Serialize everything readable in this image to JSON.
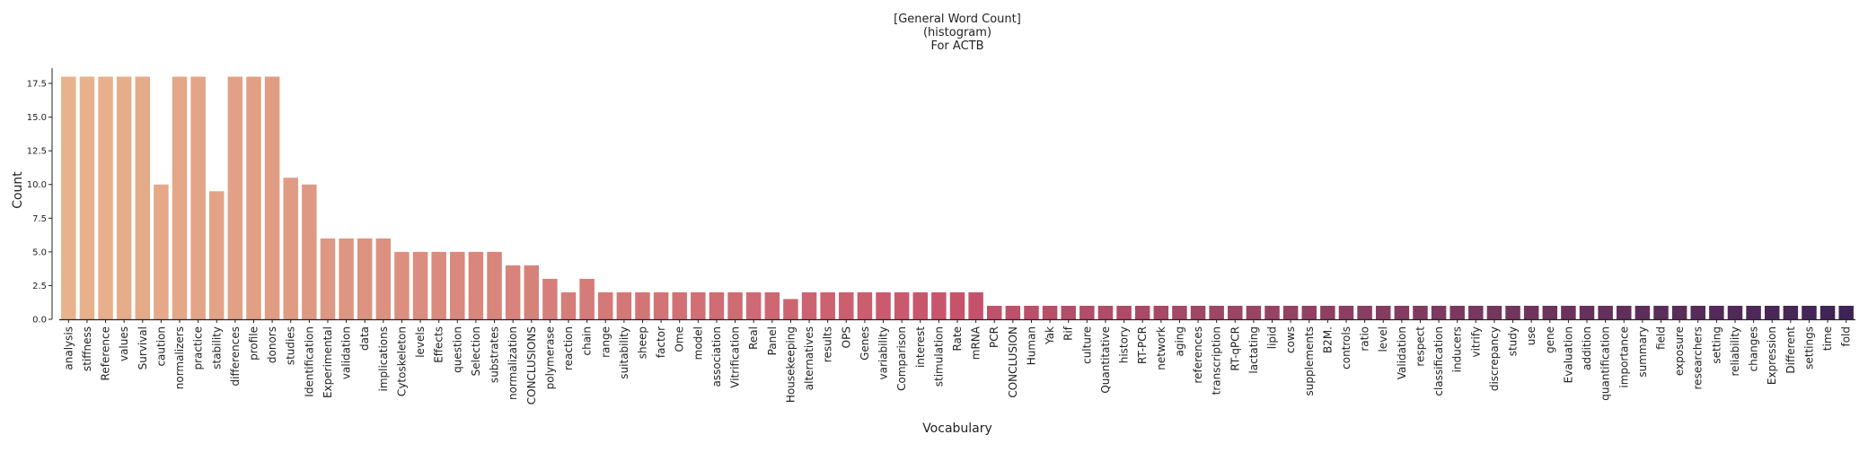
{
  "chart_data": {
    "type": "bar",
    "title_lines": [
      "[General Word Count]",
      "(histogram)",
      "For ACTB"
    ],
    "xlabel": "Vocabulary",
    "ylabel": "Count",
    "ylim": [
      0,
      18.5
    ],
    "yticks": [
      0.0,
      2.5,
      5.0,
      7.5,
      10.0,
      12.5,
      15.0,
      17.5
    ],
    "grid": false,
    "legend": "none",
    "palette": {
      "start": "#e8b38c",
      "mid": "#c7536b",
      "end": "#3f2356"
    },
    "categories": [
      "analysis",
      "stiffness",
      "Reference",
      "values",
      "Survival",
      "caution",
      "normalizers",
      "practice",
      "stability",
      "differences",
      "profile",
      "donors",
      "studies",
      "Identification",
      "Experimental",
      "validation",
      "data",
      "implications",
      "Cytoskeleton",
      "levels",
      "Effects",
      "question",
      "Selection",
      "substrates",
      "normalization",
      "CONCLUSIONS",
      "polymerase",
      "reaction",
      "chain",
      "range",
      "suitability",
      "sheep",
      "factor",
      "Ome",
      "model",
      "association",
      "Vitrification",
      "Real",
      "Panel",
      "Housekeeping",
      "alternatives",
      "results",
      "OPS",
      "Genes",
      "variability",
      "Comparison",
      "interest",
      "stimulation",
      "Rate",
      "mRNA",
      "PCR",
      "CONCLUSION",
      "Human",
      "Yak",
      "Rif",
      "culture",
      "Quantitative",
      "history",
      "RT-PCR",
      "network",
      "aging",
      "references",
      "transcription",
      "RT-qPCR",
      "lactating",
      "lipid",
      "cows",
      "supplements",
      "B2M.",
      "controls",
      "ratio",
      "level",
      "Validation",
      "respect",
      "classification",
      "inducers",
      "vitrify",
      "discrepancy",
      "study",
      "use",
      "gene",
      "Evaluation",
      "addition",
      "quantification",
      "importance",
      "summary",
      "field",
      "exposure",
      "researchers",
      "setting",
      "reliability",
      "changes",
      "Expression",
      "Different",
      "settings",
      "time",
      "fold"
    ],
    "values": [
      18,
      18,
      18,
      18,
      18,
      10,
      18,
      18,
      9.5,
      18,
      18,
      18,
      10.5,
      10,
      6,
      6,
      6,
      6,
      5,
      5,
      5,
      5,
      5,
      5,
      4,
      4,
      3,
      2,
      3,
      2,
      2,
      2,
      2,
      2,
      2,
      2,
      2,
      2,
      2,
      1.5,
      2,
      2,
      2,
      2,
      2,
      2,
      2,
      2,
      2,
      2,
      1,
      1,
      1,
      1,
      1,
      1,
      1,
      1,
      1,
      1,
      1,
      1,
      1,
      1,
      1,
      1,
      1,
      1,
      1,
      1,
      1,
      1,
      1,
      1,
      1,
      1,
      1,
      1,
      1,
      1,
      1,
      1,
      1,
      1,
      1,
      1,
      1,
      1,
      1,
      1,
      1,
      1,
      1,
      1,
      1,
      1,
      1
    ]
  }
}
